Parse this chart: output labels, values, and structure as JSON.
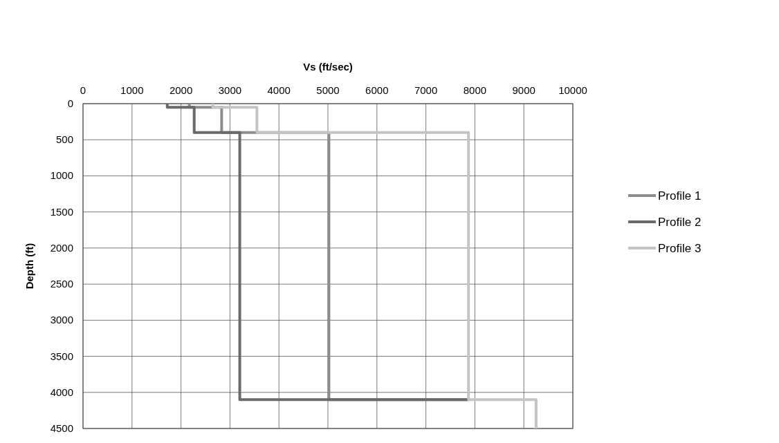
{
  "chart_data": {
    "type": "line",
    "xlabel": "Vs (ft/sec)",
    "ylabel": "Depth (ft)",
    "xlim": [
      0,
      10000
    ],
    "xticks": [
      0,
      1000,
      2000,
      3000,
      4000,
      5000,
      6000,
      7000,
      8000,
      9000,
      10000
    ],
    "ylim": [
      4500,
      0
    ],
    "yticks": [
      0,
      500,
      1000,
      1500,
      2000,
      2500,
      3000,
      3500,
      4000,
      4500
    ],
    "grid": true,
    "legend": "right",
    "marker": "none",
    "line_style": "solid",
    "series": [
      {
        "name": "Profile 1",
        "color": "#8c8c8c",
        "x": [
          2170,
          2170,
          2830,
          2830,
          5020,
          5020,
          7870
        ],
        "values": [
          0,
          50,
          50,
          400,
          400,
          4100,
          4100
        ]
      },
      {
        "name": "Profile 2",
        "color": "#6a6a6a",
        "x": [
          1720,
          1720,
          2270,
          2270,
          3200,
          3200,
          7870
        ],
        "values": [
          0,
          50,
          50,
          400,
          400,
          4100,
          4100
        ]
      },
      {
        "name": "Profile 3",
        "color": "#c4c4c4",
        "x": [
          2650,
          2650,
          3550,
          3550,
          7870,
          7870,
          9250,
          9250
        ],
        "values": [
          0,
          50,
          50,
          400,
          400,
          4100,
          4100,
          4500
        ]
      }
    ]
  }
}
